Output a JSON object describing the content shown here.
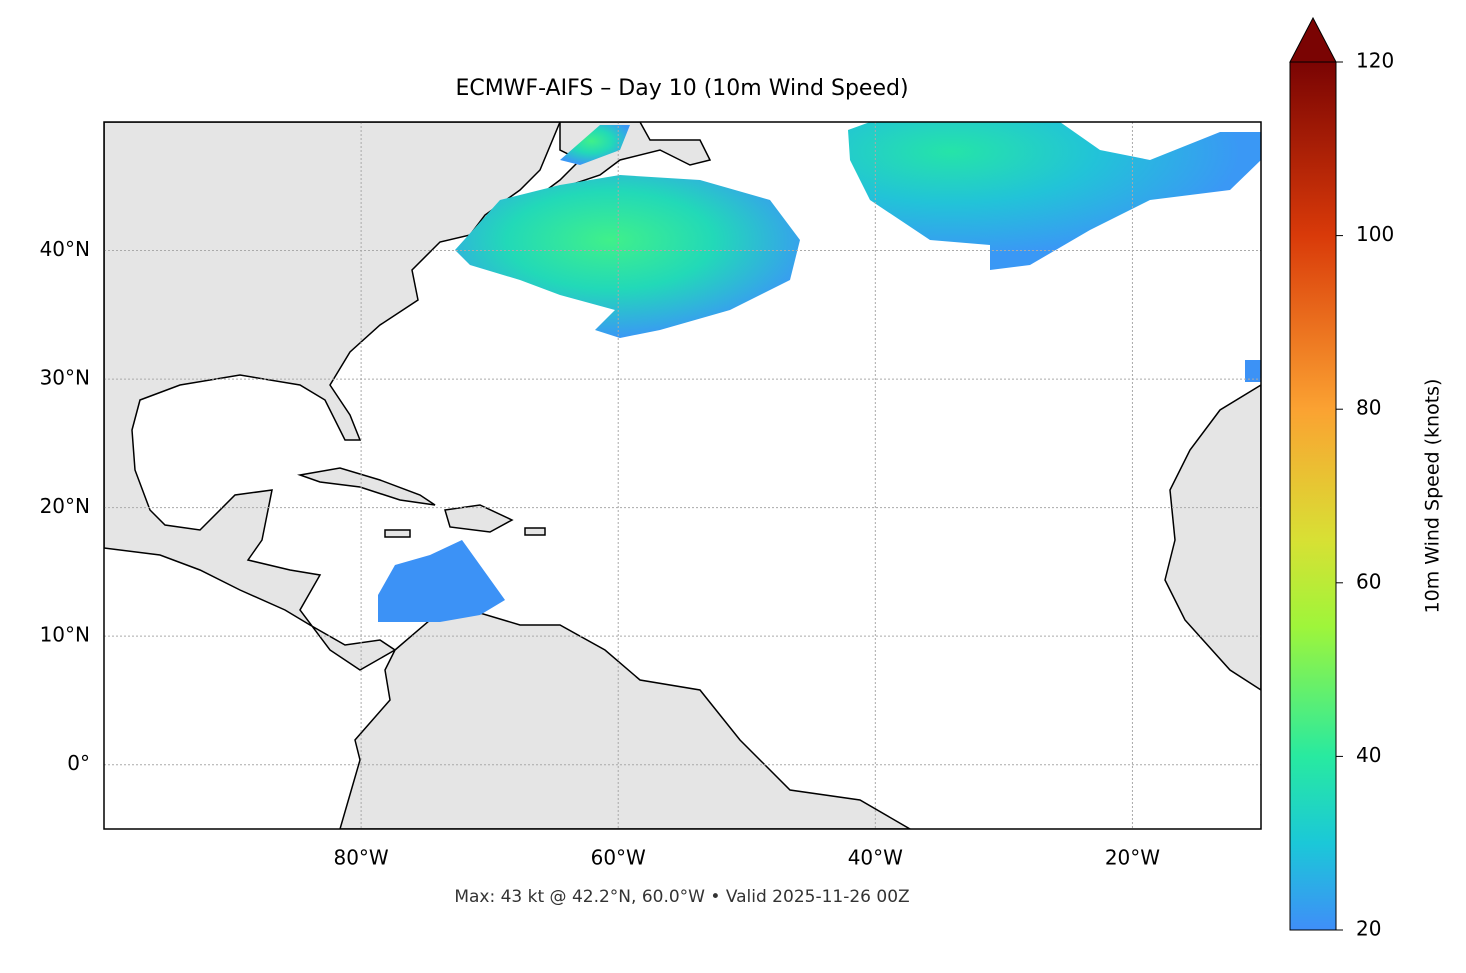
{
  "chart_data": {
    "type": "map",
    "title": "ECMWF-AIFS – Day 10 (10m Wind Speed)",
    "footer": "Max: 43 kt @ 42.2°N, 60.0°W • Valid 2025-11-26 00Z",
    "xlim": [
      -100,
      -10
    ],
    "ylim": [
      -5,
      50
    ],
    "xticks": [
      {
        "value": -80,
        "label": "80°W"
      },
      {
        "value": -60,
        "label": "60°W"
      },
      {
        "value": -40,
        "label": "40°W"
      },
      {
        "value": -20,
        "label": "20°W"
      }
    ],
    "yticks": [
      {
        "value": 0,
        "label": "0°"
      },
      {
        "value": 10,
        "label": "10°N"
      },
      {
        "value": 20,
        "label": "20°N"
      },
      {
        "value": 30,
        "label": "30°N"
      },
      {
        "value": 40,
        "label": "40°N"
      }
    ],
    "grid": true,
    "colorbar": {
      "label": "10m Wind Speed (knots)",
      "lim": [
        20,
        120
      ],
      "ticks": [
        20,
        40,
        60,
        80,
        100,
        120
      ]
    }
  }
}
